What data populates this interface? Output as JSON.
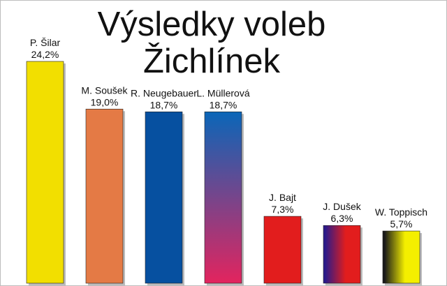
{
  "chart_data": {
    "type": "bar",
    "title_lines": [
      "Výsledky voleb",
      "Žichlínek"
    ],
    "categories": [
      "P. Šilar",
      "M. Soušek",
      "R. Neugebauer",
      "L. Müllerová",
      "J. Bajt",
      "J. Dušek",
      "W. Toppisch"
    ],
    "values": [
      24.2,
      19.0,
      18.7,
      18.7,
      7.3,
      6.3,
      5.7
    ],
    "value_labels": [
      "24,2%",
      "19,0%",
      "18,7%",
      "18,7%",
      "7,3%",
      "6,3%",
      "5,7%"
    ],
    "bar_colors": [
      [
        "#f2df00"
      ],
      [
        "#e47a45"
      ],
      [
        "#0650a0"
      ],
      [
        "#0a66b8",
        "#e3245e"
      ],
      [
        "#e21d1d"
      ],
      [
        "#2a1a8a",
        "#e21d1d"
      ],
      [
        "#1a1a1a",
        "#f4ef00"
      ]
    ],
    "ylim": [
      0,
      26
    ],
    "grid": false,
    "legend": "none"
  }
}
